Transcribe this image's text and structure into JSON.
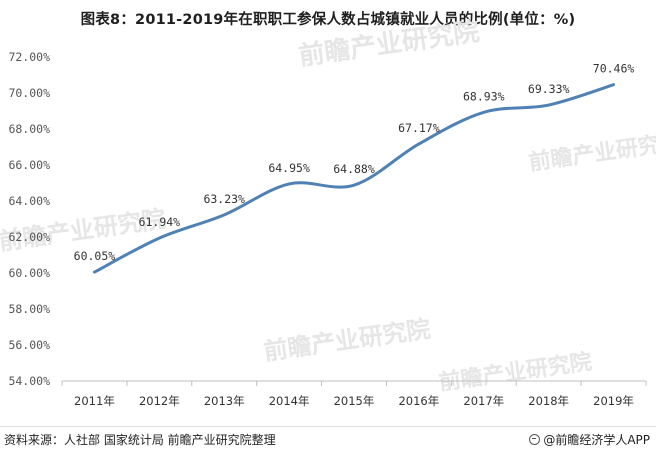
{
  "chart_data": {
    "type": "line",
    "title": "图表8：2011-2019年在职职工参保人数占城镇就业人员的比例(单位：%)",
    "categories": [
      "2011年",
      "2012年",
      "2013年",
      "2014年",
      "2015年",
      "2016年",
      "2017年",
      "2018年",
      "2019年"
    ],
    "series": [
      {
        "values": [
          60.05,
          61.94,
          63.23,
          64.95,
          64.88,
          67.17,
          68.93,
          69.33,
          70.46
        ],
        "labels": [
          "60.05%",
          "61.94%",
          "63.23%",
          "64.95%",
          "64.88%",
          "67.17%",
          "68.93%",
          "69.33%",
          "70.46%"
        ],
        "color": "#4f81b4"
      }
    ],
    "y_ticks": [
      54,
      56,
      58,
      60,
      62,
      64,
      66,
      68,
      70,
      72
    ],
    "y_tick_labels": [
      "54.00%",
      "56.00%",
      "58.00%",
      "60.00%",
      "62.00%",
      "64.00%",
      "66.00%",
      "68.00%",
      "70.00%",
      "72.00%"
    ],
    "ylim": [
      54,
      72
    ],
    "grid": false,
    "xlabel": "",
    "ylabel": ""
  },
  "footer": {
    "source": "资料来源：人社部 国家统计局 前瞻产业研究院整理",
    "brand": "@前瞻经济学人APP"
  },
  "watermark": {
    "text": "前瞻产业研究院"
  },
  "colors": {
    "line": "#4f81b4",
    "axis": "#bfbfbf",
    "watermark": "#e6e6e6"
  }
}
